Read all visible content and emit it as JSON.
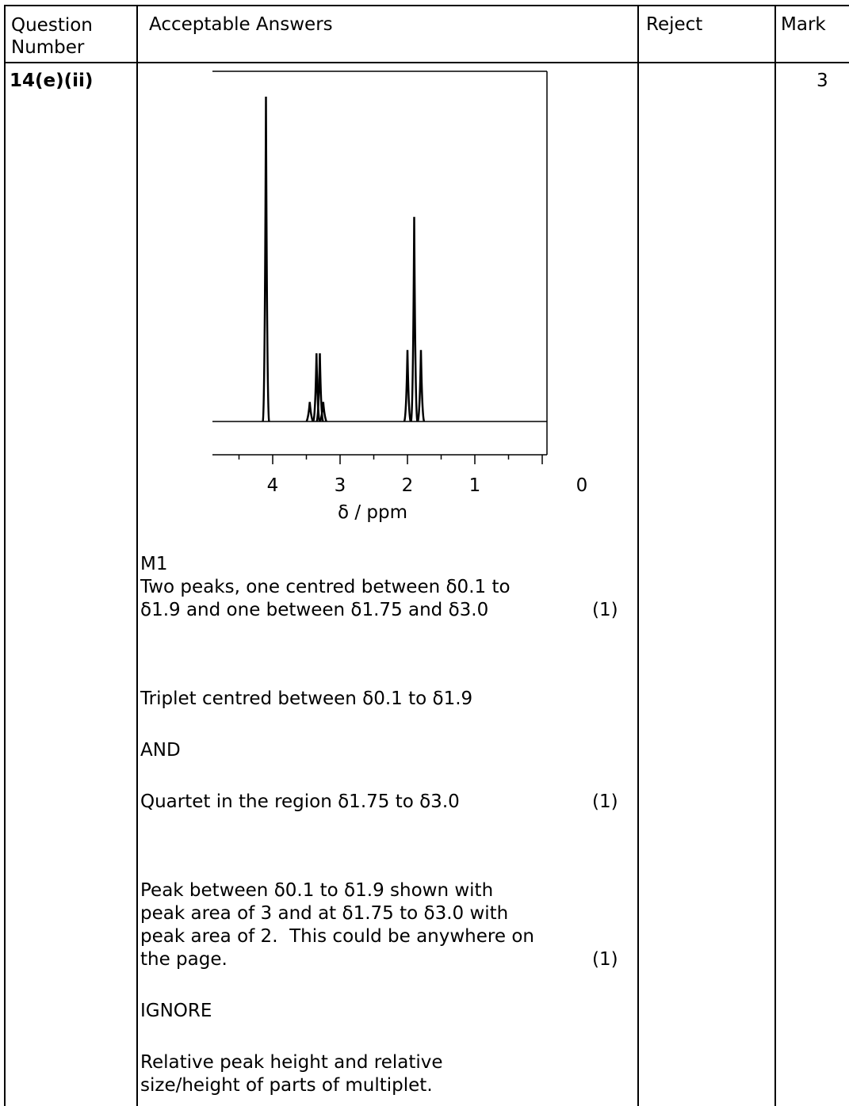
{
  "headers": {
    "question": "Question\nNumber",
    "answers": "Acceptable Answers",
    "reject": "Reject",
    "mark": "Mark"
  },
  "row": {
    "question_number": "14(e)(ii)",
    "mark": "3"
  },
  "chart_data": {
    "type": "line",
    "xlabel": "δ / ppm",
    "x_ticks": [
      "4",
      "3",
      "2",
      "1",
      "0"
    ],
    "x_reversed": true,
    "peaks": [
      {
        "shift": 4.1,
        "height": 1.0
      },
      {
        "shift": 3.45,
        "height": 0.06
      },
      {
        "shift": 3.35,
        "height": 0.21
      },
      {
        "shift": 3.3,
        "height": 0.21
      },
      {
        "shift": 3.25,
        "height": 0.06
      },
      {
        "shift": 2.0,
        "height": 0.22
      },
      {
        "shift": 1.9,
        "height": 0.63
      },
      {
        "shift": 1.8,
        "height": 0.22
      }
    ]
  },
  "answer": {
    "m1_label": "M1",
    "p1_line1": "Two peaks, one centred between δ0.1 to",
    "p1_line2": "δ1.9 and one between δ1.75 and δ3.0",
    "p1_mark": "(1)",
    "p2": "Triplet centred between δ0.1 to δ1.9",
    "and": "AND",
    "p3": "Quartet in the region δ1.75 to δ3.0",
    "p3_mark": "(1)",
    "p4_line1": "Peak between δ0.1 to δ1.9 shown with",
    "p4_line2": "peak area of 3 and at δ1.75 to δ3.0 with",
    "p4_line3": "peak area of 2.  This could be anywhere on",
    "p4_line4": "the page.",
    "p4_mark": "(1)",
    "ignore": "IGNORE",
    "p5_line1": "Relative peak height and relative",
    "p5_line2": "size/height of parts of multiplet."
  }
}
